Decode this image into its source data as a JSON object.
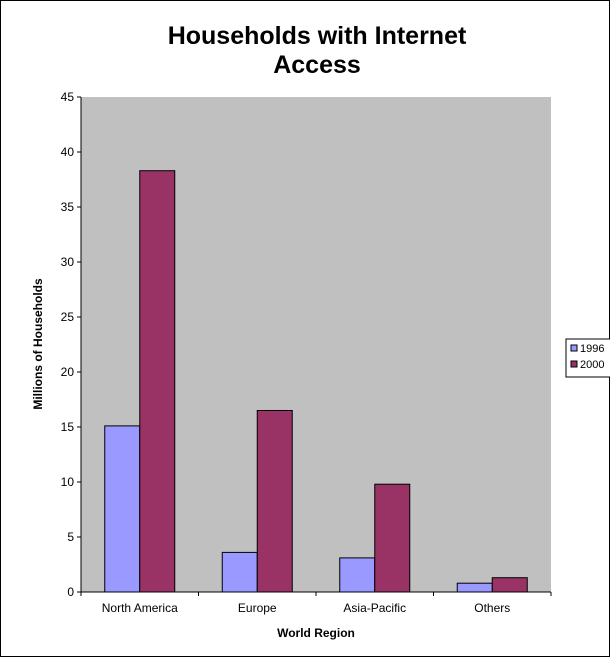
{
  "chart_data": {
    "type": "bar",
    "title": "Households with Internet Access",
    "xlabel": "World Region",
    "ylabel": "Millions of Households",
    "categories": [
      "North America",
      "Europe",
      "Asia-Pacific",
      "Others"
    ],
    "series": [
      {
        "name": "1996",
        "values": [
          15.1,
          3.6,
          3.1,
          0.8
        ],
        "color": "#9999ff"
      },
      {
        "name": "2000",
        "values": [
          38.3,
          16.5,
          9.8,
          1.3
        ],
        "color": "#993366"
      }
    ],
    "ylim": [
      0,
      45
    ],
    "yticks": [
      0,
      5,
      10,
      15,
      20,
      25,
      30,
      35,
      40,
      45
    ],
    "grid": false,
    "legend": "right",
    "plot_background": "#c0c0c0"
  }
}
